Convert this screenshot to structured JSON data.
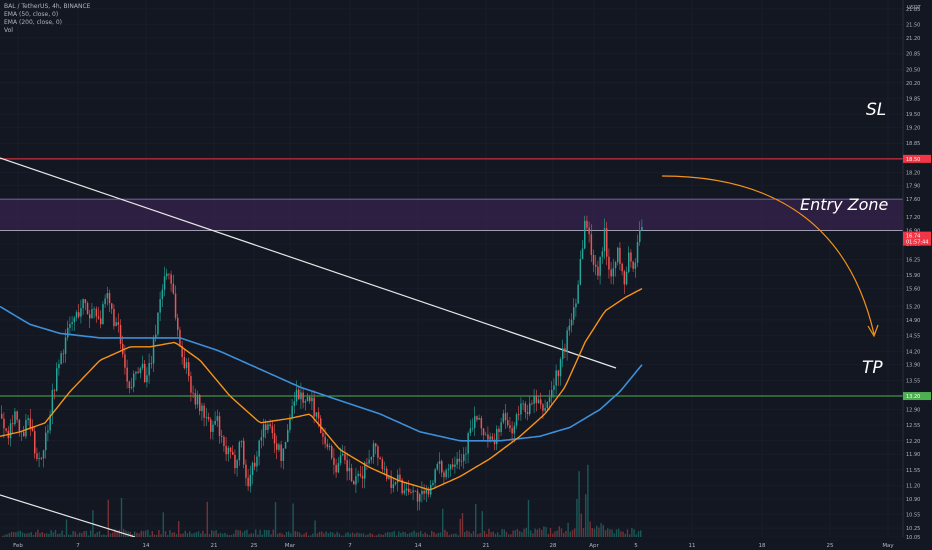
{
  "header": {
    "symbol_line": "BAL / TetherUS, 4h, BINANCE",
    "ema50_label": "EMA (50, close, 0)",
    "ema200_label": "EMA (200, close, 0)",
    "vol_label": "Vol",
    "quote_currency": "USDT"
  },
  "annotations": {
    "sl": "SL",
    "entry_zone": "Entry Zone",
    "tp": "TP"
  },
  "colors": {
    "background": "#131722",
    "grid": "#1c2030",
    "up_candle": "#26a69a",
    "down_candle": "#ef5350",
    "ema50": "#f7931a",
    "ema200": "#3d8fd9",
    "sl_line": "#f23645",
    "tp_line": "#4caf50",
    "zone_fill": "#5b2e7a",
    "trendline": "#e6e6e6",
    "arrow": "#f7931a"
  },
  "chart_data": {
    "type": "candlestick",
    "ylim": [
      10.05,
      22.05
    ],
    "price_ticks": [
      "21.85",
      "21.50",
      "21.20",
      "20.85",
      "20.50",
      "20.20",
      "19.85",
      "19.50",
      "19.20",
      "18.85",
      "18.50",
      "18.20",
      "17.90",
      "17.60",
      "17.20",
      "16.90",
      "16.60",
      "16.25",
      "15.90",
      "15.60",
      "15.20",
      "14.90",
      "14.55",
      "14.20",
      "13.90",
      "13.55",
      "13.20",
      "12.90",
      "12.55",
      "12.20",
      "11.90",
      "11.55",
      "11.20",
      "10.90",
      "10.55",
      "10.25",
      "10.05"
    ],
    "x_ticks": [
      "Feb",
      "7",
      "14",
      "21",
      "25",
      "Mar",
      "7",
      "14",
      "21",
      "28",
      "Apr",
      "5",
      "11",
      "18",
      "25",
      "May"
    ],
    "levels": {
      "stop_loss": 18.5,
      "take_profit": 13.2,
      "entry_zone_low": 16.9,
      "entry_zone_high": 17.6
    },
    "price_badges": {
      "sl": "18.50",
      "tp": "13.20",
      "last_price": "16.74",
      "countdown": "01:57:44"
    },
    "ohlc_path": [
      [
        0,
        12.8
      ],
      [
        8,
        12.4
      ],
      [
        14,
        12.9
      ],
      [
        20,
        12.2
      ],
      [
        28,
        12.7
      ],
      [
        34,
        12.0
      ],
      [
        40,
        11.8
      ],
      [
        46,
        12.4
      ],
      [
        52,
        13.3
      ],
      [
        58,
        13.9
      ],
      [
        64,
        14.4
      ],
      [
        70,
        14.8
      ],
      [
        76,
        15.0
      ],
      [
        82,
        15.3
      ],
      [
        88,
        15.0
      ],
      [
        94,
        15.2
      ],
      [
        100,
        14.9
      ],
      [
        106,
        15.4
      ],
      [
        112,
        15.0
      ],
      [
        118,
        14.6
      ],
      [
        124,
        13.8
      ],
      [
        128,
        13.2
      ],
      [
        134,
        13.7
      ],
      [
        140,
        14.0
      ],
      [
        146,
        13.5
      ],
      [
        152,
        14.2
      ],
      [
        158,
        15.2
      ],
      [
        164,
        15.9
      ],
      [
        168,
        16.0
      ],
      [
        172,
        15.6
      ],
      [
        176,
        14.8
      ],
      [
        180,
        14.2
      ],
      [
        186,
        13.8
      ],
      [
        192,
        13.3
      ],
      [
        198,
        13.0
      ],
      [
        204,
        12.8
      ],
      [
        210,
        12.4
      ],
      [
        216,
        12.7
      ],
      [
        222,
        12.0
      ],
      [
        228,
        11.9
      ],
      [
        234,
        11.7
      ],
      [
        240,
        12.3
      ],
      [
        246,
        11.2
      ],
      [
        252,
        11.6
      ],
      [
        258,
        12.1
      ],
      [
        264,
        12.6
      ],
      [
        270,
        12.4
      ],
      [
        276,
        12.1
      ],
      [
        282,
        11.8
      ],
      [
        288,
        12.6
      ],
      [
        294,
        13.3
      ],
      [
        300,
        13.2
      ],
      [
        306,
        13.1
      ],
      [
        312,
        13.0
      ],
      [
        318,
        12.6
      ],
      [
        324,
        12.3
      ],
      [
        330,
        11.9
      ],
      [
        336,
        11.6
      ],
      [
        342,
        11.8
      ],
      [
        348,
        11.5
      ],
      [
        354,
        11.2
      ],
      [
        360,
        11.4
      ],
      [
        366,
        11.7
      ],
      [
        372,
        12.1
      ],
      [
        378,
        11.9
      ],
      [
        384,
        11.5
      ],
      [
        390,
        11.3
      ],
      [
        396,
        11.4
      ],
      [
        402,
        11.1
      ],
      [
        408,
        11.2
      ],
      [
        414,
        11.0
      ],
      [
        420,
        10.9
      ],
      [
        426,
        11.0
      ],
      [
        432,
        11.4
      ],
      [
        438,
        11.6
      ],
      [
        444,
        11.5
      ],
      [
        450,
        11.7
      ],
      [
        456,
        11.9
      ],
      [
        462,
        11.8
      ],
      [
        468,
        12.3
      ],
      [
        474,
        12.7
      ],
      [
        480,
        12.5
      ],
      [
        486,
        12.3
      ],
      [
        492,
        12.1
      ],
      [
        498,
        12.5
      ],
      [
        504,
        12.7
      ],
      [
        510,
        12.4
      ],
      [
        516,
        12.7
      ],
      [
        522,
        13.0
      ],
      [
        528,
        12.9
      ],
      [
        534,
        13.1
      ],
      [
        540,
        12.9
      ],
      [
        546,
        13.0
      ],
      [
        552,
        13.4
      ],
      [
        558,
        13.8
      ],
      [
        564,
        14.3
      ],
      [
        570,
        14.9
      ],
      [
        576,
        15.5
      ],
      [
        580,
        16.3
      ],
      [
        584,
        17.1
      ],
      [
        588,
        16.8
      ],
      [
        592,
        16.3
      ],
      [
        596,
        15.9
      ],
      [
        600,
        16.4
      ],
      [
        604,
        16.8
      ],
      [
        608,
        16.1
      ],
      [
        612,
        16.0
      ],
      [
        616,
        16.5
      ],
      [
        620,
        16.0
      ],
      [
        624,
        15.7
      ],
      [
        628,
        16.4
      ],
      [
        632,
        15.9
      ],
      [
        636,
        16.5
      ],
      [
        640,
        16.9
      ],
      [
        642,
        17.1
      ]
    ],
    "ema50_path": [
      [
        0,
        12.3
      ],
      [
        20,
        12.4
      ],
      [
        45,
        12.6
      ],
      [
        70,
        13.3
      ],
      [
        100,
        14.0
      ],
      [
        130,
        14.3
      ],
      [
        150,
        14.3
      ],
      [
        175,
        14.4
      ],
      [
        200,
        14.0
      ],
      [
        230,
        13.2
      ],
      [
        260,
        12.6
      ],
      [
        290,
        12.7
      ],
      [
        310,
        12.8
      ],
      [
        340,
        12.0
      ],
      [
        370,
        11.6
      ],
      [
        400,
        11.3
      ],
      [
        430,
        11.1
      ],
      [
        460,
        11.4
      ],
      [
        490,
        11.8
      ],
      [
        520,
        12.3
      ],
      [
        545,
        12.8
      ],
      [
        565,
        13.4
      ],
      [
        585,
        14.4
      ],
      [
        605,
        15.1
      ],
      [
        625,
        15.4
      ],
      [
        642,
        15.6
      ]
    ],
    "ema200_path": [
      [
        0,
        15.2
      ],
      [
        30,
        14.8
      ],
      [
        60,
        14.6
      ],
      [
        100,
        14.5
      ],
      [
        140,
        14.5
      ],
      [
        180,
        14.5
      ],
      [
        220,
        14.2
      ],
      [
        260,
        13.8
      ],
      [
        300,
        13.4
      ],
      [
        340,
        13.1
      ],
      [
        380,
        12.8
      ],
      [
        420,
        12.4
      ],
      [
        460,
        12.2
      ],
      [
        500,
        12.2
      ],
      [
        540,
        12.3
      ],
      [
        570,
        12.5
      ],
      [
        600,
        12.9
      ],
      [
        620,
        13.3
      ],
      [
        642,
        13.9
      ]
    ],
    "volume_profile": [
      [
        0,
        0.3
      ],
      [
        40,
        0.45
      ],
      [
        80,
        0.35
      ],
      [
        120,
        0.5
      ],
      [
        160,
        0.4
      ],
      [
        200,
        0.35
      ],
      [
        240,
        0.55
      ],
      [
        280,
        0.4
      ],
      [
        320,
        0.35
      ],
      [
        360,
        0.3
      ],
      [
        400,
        0.35
      ],
      [
        440,
        0.4
      ],
      [
        480,
        0.45
      ],
      [
        520,
        0.5
      ],
      [
        560,
        0.7
      ],
      [
        580,
        1.0
      ],
      [
        600,
        0.8
      ],
      [
        620,
        0.6
      ],
      [
        642,
        0.5
      ]
    ]
  }
}
